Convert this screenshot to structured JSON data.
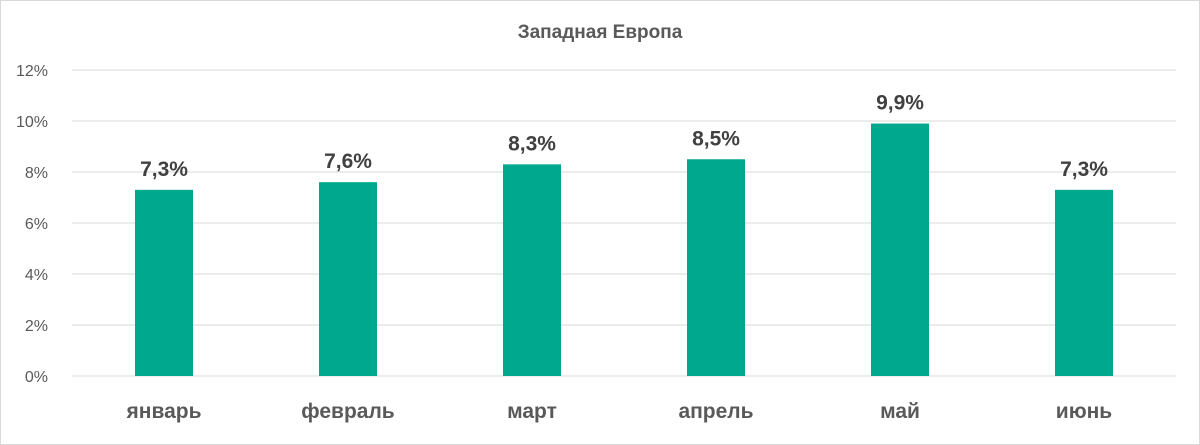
{
  "chart_data": {
    "type": "bar",
    "title": "Западная Европа",
    "categories": [
      "январь",
      "февраль",
      "март",
      "апрель",
      "май",
      "июнь"
    ],
    "values": [
      7.3,
      7.6,
      8.3,
      8.5,
      9.9,
      7.3
    ],
    "data_labels": [
      "7,3%",
      "7,6%",
      "8,3%",
      "8,5%",
      "9,9%",
      "7,3%"
    ],
    "y_ticks": [
      0,
      2,
      4,
      6,
      8,
      10,
      12
    ],
    "y_tick_labels": [
      "0%",
      "2%",
      "4%",
      "6%",
      "8%",
      "10%",
      "12%"
    ],
    "ylim": [
      0,
      12
    ],
    "xlabel": "",
    "ylabel": "",
    "grid": true,
    "bar_color": "#00A88E"
  }
}
